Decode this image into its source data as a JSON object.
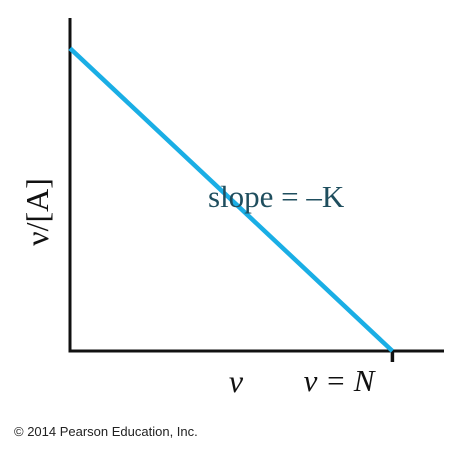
{
  "chart_data": {
    "type": "line",
    "title": "",
    "xlabel": "ν",
    "ylabel": "ν/[A]",
    "x_tick_labels": [
      "ν = N"
    ],
    "annotation": "slope = –K",
    "series": [
      {
        "x": [
          0,
          1
        ],
        "y": [
          1,
          0
        ]
      }
    ],
    "xlim": [
      0,
      1.16
    ],
    "ylim": [
      0,
      1.1
    ],
    "grid": false,
    "line_color": "#1aaee5",
    "annotation_color": "#1f4e5e"
  },
  "footer": {
    "copyright": "© 2014 Pearson Education, Inc."
  }
}
